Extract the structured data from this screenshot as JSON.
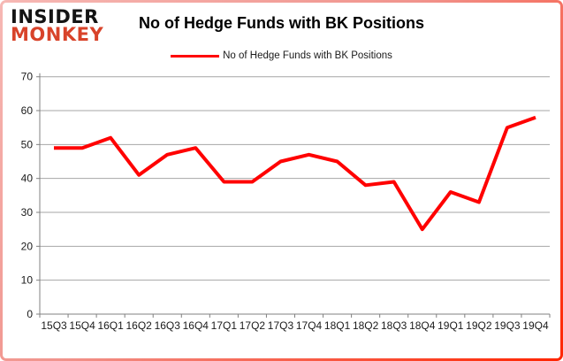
{
  "logo": {
    "line1": "INSIDER",
    "line2": "MONKEY"
  },
  "header": {
    "title": "No of Hedge Funds with BK Positions"
  },
  "legend": {
    "label": "No of Hedge Funds with BK Positions",
    "line_color": "#ff0000"
  },
  "chart_data": {
    "type": "line",
    "title": "No of Hedge Funds with BK Positions",
    "categories": [
      "15Q3",
      "15Q4",
      "16Q1",
      "16Q2",
      "16Q3",
      "16Q4",
      "17Q1",
      "17Q2",
      "17Q3",
      "17Q4",
      "18Q1",
      "18Q2",
      "18Q3",
      "18Q4",
      "19Q1",
      "19Q2",
      "19Q3",
      "19Q4"
    ],
    "series": [
      {
        "name": "No of Hedge Funds with BK Positions",
        "color": "#ff0000",
        "values": [
          49,
          49,
          52,
          41,
          47,
          49,
          39,
          39,
          45,
          47,
          45,
          38,
          39,
          25,
          36,
          33,
          55,
          58
        ]
      }
    ],
    "xlabel": "",
    "ylabel": "",
    "ylim": [
      0,
      70
    ],
    "yticks": [
      0,
      10,
      20,
      30,
      40,
      50,
      60,
      70
    ],
    "grid": "horizontal",
    "legend_position": "top-center",
    "gridline_color": "#a6a6a6",
    "axis_color": "#808080",
    "tick_label_color": "#1a1a1a"
  },
  "colors": {
    "frame_border": "#ff2400",
    "background": "#ffffff",
    "logo_black": "#141414",
    "logo_red": "#d8432a"
  }
}
